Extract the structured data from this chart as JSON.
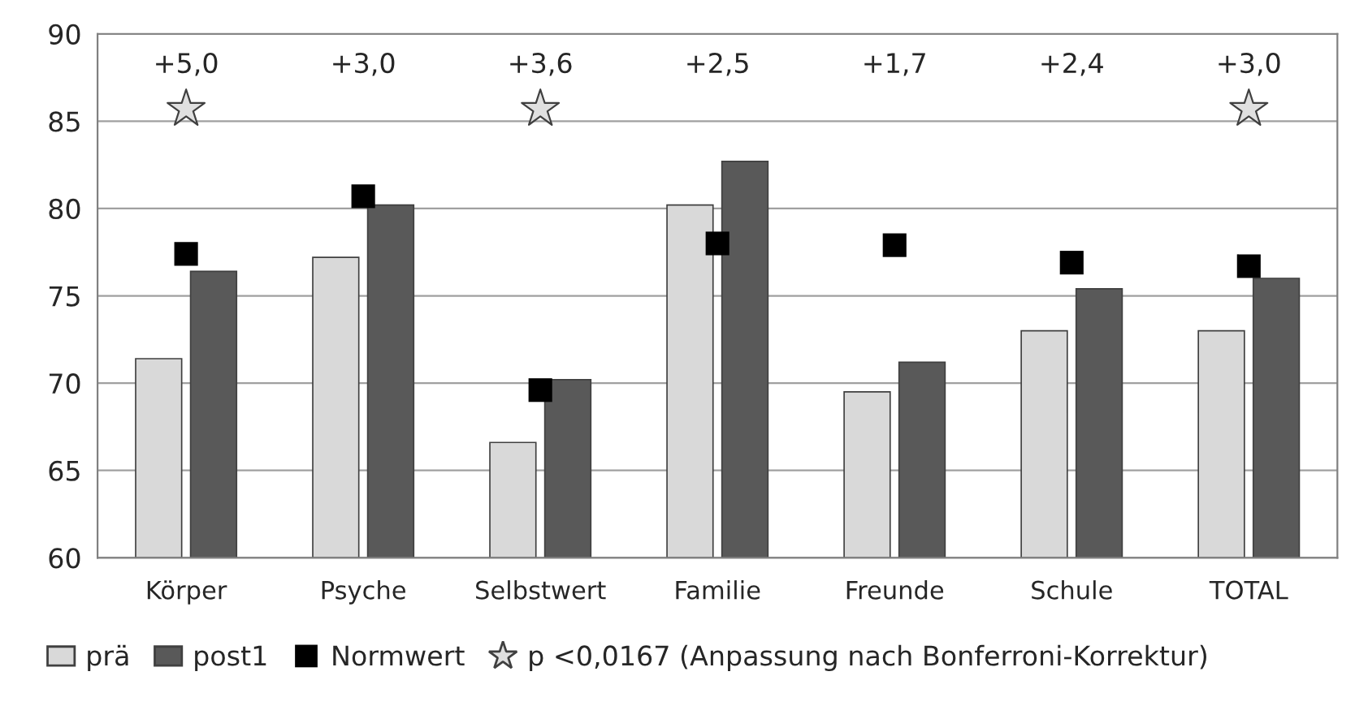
{
  "chart_data": {
    "type": "bar",
    "categories": [
      "Körper",
      "Psyche",
      "Selbstwert",
      "Familie",
      "Freunde",
      "Schule",
      "TOTAL"
    ],
    "series": [
      {
        "name": "prä",
        "color": "#d9d9d9",
        "values": [
          71.4,
          77.2,
          66.6,
          80.2,
          69.5,
          73.0,
          73.0
        ]
      },
      {
        "name": "post1",
        "color": "#595959",
        "values": [
          76.4,
          80.2,
          70.2,
          82.7,
          71.2,
          75.4,
          76.0
        ]
      },
      {
        "name": "Normwert",
        "type": "scatter",
        "marker": "square",
        "color": "#000000",
        "values": [
          77.4,
          80.7,
          69.6,
          78.0,
          77.9,
          76.9,
          76.7
        ]
      },
      {
        "name": "p <0,0167 (Anpassung nach Bonferroni-Korrektur)",
        "type": "scatter",
        "marker": "star",
        "color": "#e0e0e0",
        "x": [
          "Körper",
          "Selbstwert",
          "TOTAL"
        ],
        "values": [
          85.7,
          85.7,
          85.7
        ]
      }
    ],
    "annotations": [
      "+5,0",
      "+3,0",
      "+3,6",
      "+2,5",
      "+1,7",
      "+2,4",
      "+3,0"
    ],
    "ylim": [
      60,
      90
    ],
    "yticks": [
      60,
      65,
      70,
      75,
      80,
      85,
      90
    ],
    "grid": "y",
    "legend": "bottom"
  }
}
